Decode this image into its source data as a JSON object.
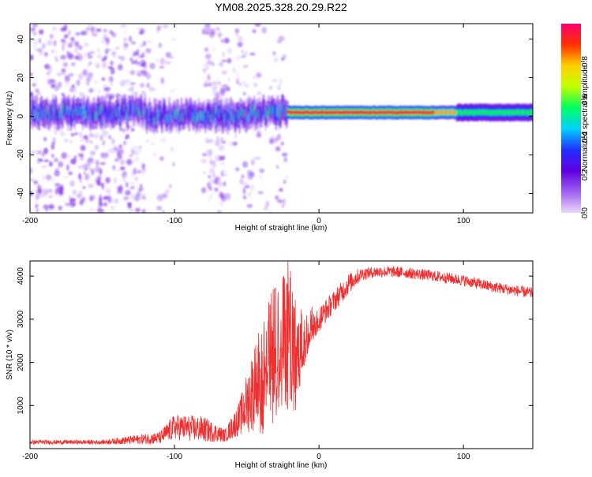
{
  "figure_title": "YM08.2025.328.20.29.R22",
  "colors": {
    "trace": "#f03030",
    "frame": "#000000",
    "background": "#ffffff"
  },
  "chart_data": [
    {
      "type": "heatmap",
      "title": "YM08.2025.328.20.29.R22",
      "xlabel": "Height of straight line (km)",
      "ylabel": "Frequency (Hz)",
      "xlim": [
        -200,
        148
      ],
      "ylim": [
        -50,
        48
      ],
      "xticks": [
        -200,
        -100,
        0,
        100
      ],
      "yticks": [
        -40,
        -20,
        0,
        20,
        40
      ],
      "ytick_labels": [
        "-40",
        "-20",
        "0",
        "20",
        "40"
      ],
      "xtick_labels": [
        "-200",
        "-100",
        "0",
        "100"
      ],
      "colorbar": {
        "label": "Normalized spectral amplitude",
        "range": [
          0,
          1
        ],
        "ticks": [
          0.0,
          0.2,
          0.4,
          0.6,
          0.8
        ],
        "tick_labels": [
          "0.0",
          "0.2",
          "0.4",
          "0.6",
          "0.8"
        ],
        "colormap": [
          "#e8d8f8",
          "#a060f0",
          "#6000e0",
          "#2030ff",
          "#00d0ff",
          "#00ff60",
          "#c0ff00",
          "#ffd000",
          "#ff3000",
          "#ff0070"
        ]
      },
      "ridge": {
        "center_hz": 2,
        "segments": [
          {
            "x0": -200,
            "x1": -22,
            "amp": 0.35,
            "width_hz": 6
          },
          {
            "x0": -22,
            "x1": 80,
            "amp": 0.95,
            "width_hz": 3
          },
          {
            "x0": 80,
            "x1": 95,
            "amp": 0.8,
            "width_hz": 3
          },
          {
            "x0": 95,
            "x1": 148,
            "amp": 0.55,
            "width_hz": 4
          }
        ]
      }
    },
    {
      "type": "line",
      "xlabel": "Height of straight line (km)",
      "ylabel": "SNR (10 * v/v)",
      "xlim": [
        -200,
        148
      ],
      "ylim": [
        0,
        4350
      ],
      "xticks": [
        -200,
        -100,
        0,
        100
      ],
      "xtick_labels": [
        "-200",
        "-100",
        "0",
        "100"
      ],
      "yticks": [
        1000,
        2000,
        3000,
        4000
      ],
      "ytick_labels": [
        "1000",
        "2000",
        "3000",
        "4000"
      ],
      "series": [
        {
          "name": "SNR",
          "color": "#f03030",
          "envelope_x": [
            -200,
            -150,
            -110,
            -100,
            -80,
            -65,
            -55,
            -45,
            -35,
            -25,
            -20,
            -15,
            -10,
            -5,
            0,
            10,
            20,
            25,
            30,
            40,
            50,
            60,
            80,
            100,
            120,
            148
          ],
          "envelope_y": [
            150,
            150,
            250,
            500,
            450,
            300,
            700,
            1400,
            2100,
            2600,
            2900,
            2300,
            2500,
            2900,
            3000,
            3400,
            3800,
            3950,
            4050,
            4100,
            4100,
            4080,
            4000,
            3900,
            3750,
            3600
          ],
          "noise_amplitude": [
            50,
            50,
            150,
            300,
            300,
            150,
            400,
            1000,
            1400,
            1600,
            1700,
            1200,
            600,
            400,
            300,
            250,
            250,
            200,
            150,
            130,
            130,
            130,
            130,
            130,
            130,
            130
          ]
        }
      ]
    }
  ]
}
